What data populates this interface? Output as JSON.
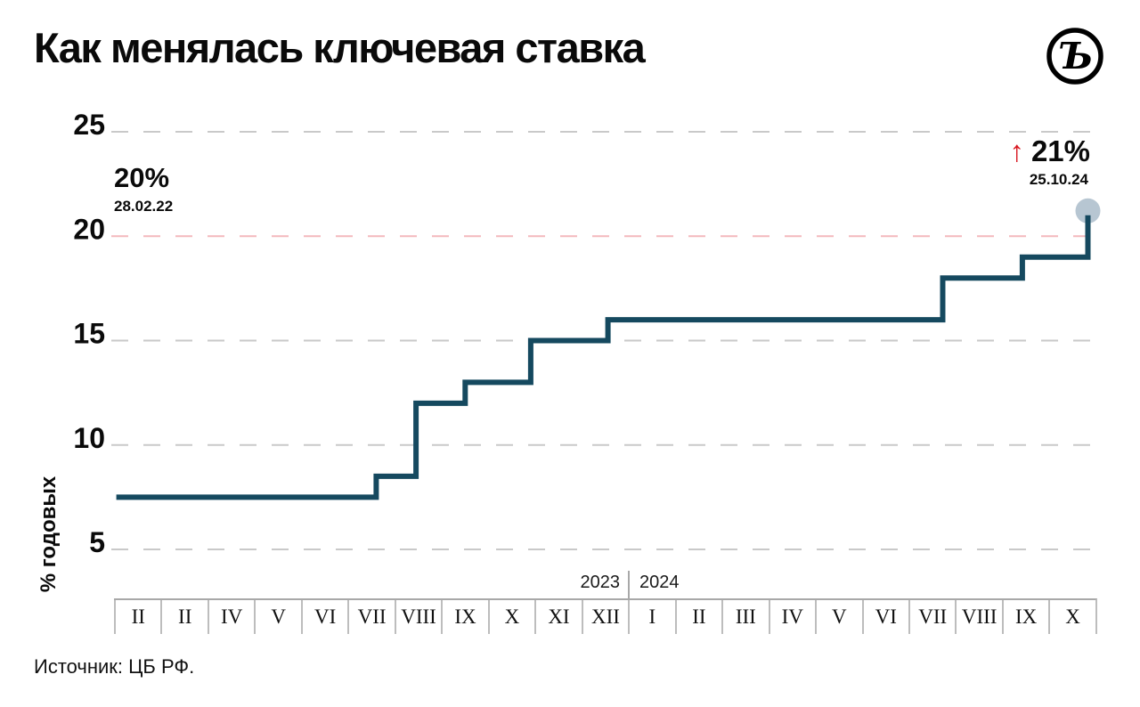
{
  "header": {
    "title": "Как менялась ключевая ставка",
    "logo": {
      "name": "kommersant-logo",
      "glyph": "Ъ"
    }
  },
  "source": {
    "label": "Источник: ЦБ РФ."
  },
  "chart_data": {
    "type": "line",
    "subtype": "step",
    "title": "Как менялась ключевая ставка",
    "ylabel": "% годовых",
    "y_ticks": [
      25,
      20,
      15,
      10,
      5
    ],
    "ylim": [
      3.5,
      26
    ],
    "grid": "dashed-horizontal",
    "highlighted_gridline": 20,
    "x_categories": [
      "II",
      "II",
      "IV",
      "V",
      "VI",
      "VII",
      "VIII",
      "IX",
      "X",
      "XI",
      "XII",
      "I",
      "II",
      "III",
      "IV",
      "V",
      "VI",
      "VII",
      "VIII",
      "IX",
      "X"
    ],
    "year_groups": [
      {
        "label": "2023",
        "columns": "II–XII"
      },
      {
        "label": "2024",
        "columns": "I–X"
      }
    ],
    "steps_note": "x is position in month-column units along the axis (0 = left edge of first 2023 column)",
    "steps": [
      {
        "x": 0.05,
        "rate": 7.5
      },
      {
        "x": 5.6,
        "rate": 8.5
      },
      {
        "x": 6.45,
        "rate": 12
      },
      {
        "x": 7.5,
        "rate": 13
      },
      {
        "x": 8.9,
        "rate": 15
      },
      {
        "x": 10.55,
        "rate": 16
      },
      {
        "x": 17.7,
        "rate": 18
      },
      {
        "x": 19.4,
        "rate": 19
      },
      {
        "x": 20.8,
        "rate": 21
      }
    ],
    "end_marker": "dot",
    "annotations": {
      "start": {
        "value": "20%",
        "date": "28.02.22"
      },
      "end": {
        "arrow": "↑",
        "value": "21%",
        "date": "25.10.24"
      }
    },
    "colors": {
      "line": "#15495f",
      "dot": "#b7c6d2",
      "accent_red": "#d8161f",
      "grid": "#c9c9c9",
      "highlight_grid": "#f4b9bd"
    }
  }
}
